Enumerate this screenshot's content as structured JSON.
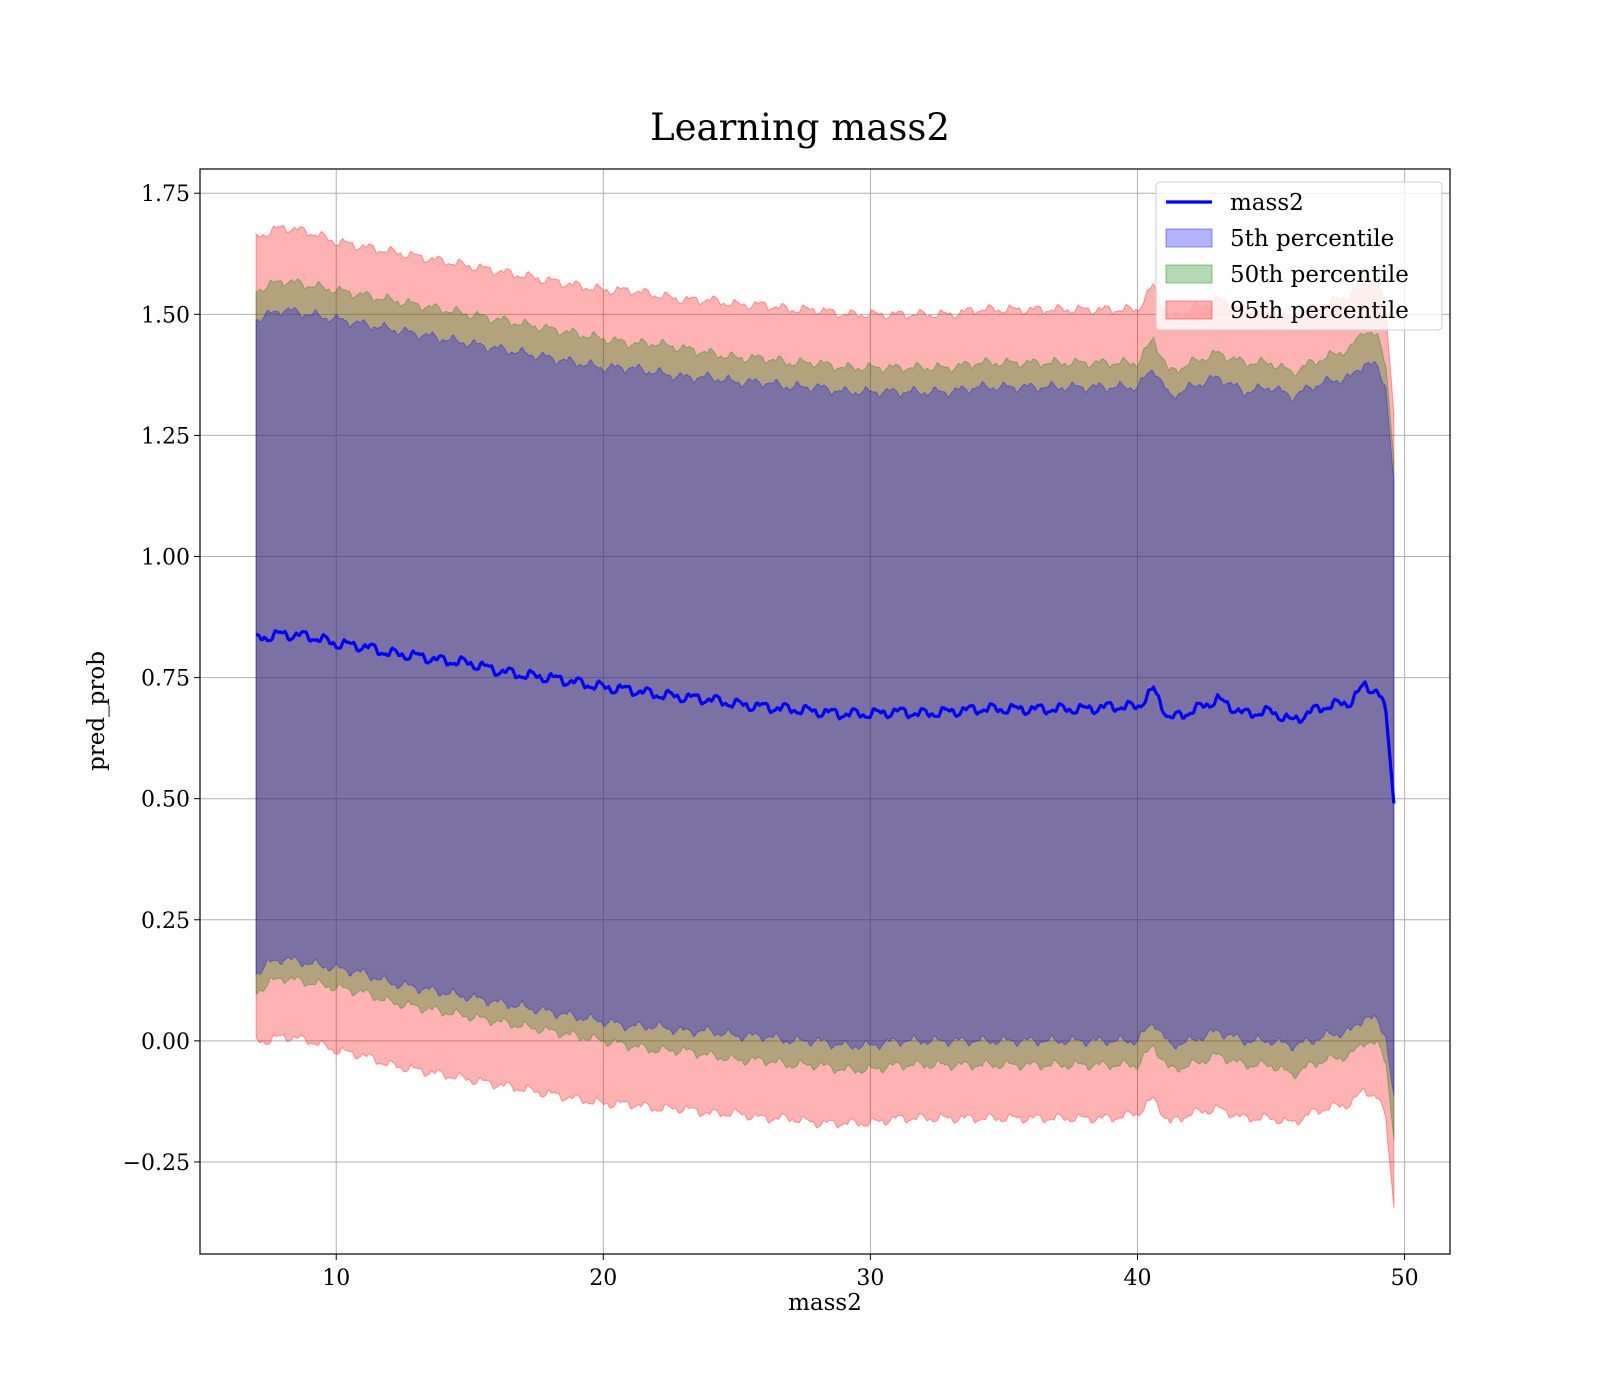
{
  "chart_data": {
    "type": "line",
    "title": "Learning mass2",
    "xlabel": "mass2",
    "ylabel": "pred_prob",
    "xlim": [
      4.9,
      51.7
    ],
    "ylim": [
      -0.44,
      1.8
    ],
    "grid": true,
    "legend_position": "top-right",
    "x_ticks": [
      10,
      20,
      30,
      40,
      50
    ],
    "x_tick_labels": [
      "10",
      "20",
      "30",
      "40",
      "50"
    ],
    "y_ticks": [
      -0.25,
      0.0,
      0.25,
      0.5,
      0.75,
      1.0,
      1.25,
      1.5,
      1.75
    ],
    "y_tick_labels": [
      "−0.25",
      "0.00",
      "0.25",
      "0.50",
      "0.75",
      "1.00",
      "1.25",
      "1.50",
      "1.75"
    ],
    "legend": [
      {
        "label": "mass2",
        "kind": "line",
        "color": "#0000ff"
      },
      {
        "label": "5th percentile",
        "kind": "patch",
        "color": "#0000ff"
      },
      {
        "label": "50th percentile",
        "kind": "patch",
        "color": "#008000"
      },
      {
        "label": "95th percentile",
        "kind": "patch",
        "color": "#ff0000"
      }
    ],
    "series": [
      {
        "name": "mass2",
        "color": "#0000ff",
        "x": [
          7.0,
          7.5,
          8.0,
          9.0,
          10.0,
          11.0,
          12.0,
          13.0,
          14.0,
          15.0,
          16.0,
          17.0,
          18.0,
          19.0,
          20.0,
          21.0,
          22.0,
          23.0,
          24.0,
          25.0,
          26.0,
          27.0,
          28.0,
          29.0,
          30.0,
          31.0,
          32.0,
          33.0,
          34.0,
          35.0,
          36.0,
          37.0,
          38.0,
          39.0,
          40.0,
          40.6,
          41.2,
          42.0,
          43.0,
          44.0,
          45.0,
          45.8,
          46.5,
          47.0,
          48.0,
          48.5,
          49.0,
          49.3,
          49.6
        ],
        "y": [
          0.83,
          0.835,
          0.84,
          0.835,
          0.82,
          0.815,
          0.8,
          0.795,
          0.785,
          0.78,
          0.765,
          0.755,
          0.75,
          0.74,
          0.73,
          0.725,
          0.715,
          0.71,
          0.705,
          0.695,
          0.69,
          0.685,
          0.68,
          0.675,
          0.675,
          0.68,
          0.675,
          0.68,
          0.685,
          0.685,
          0.685,
          0.685,
          0.685,
          0.69,
          0.69,
          0.725,
          0.665,
          0.68,
          0.705,
          0.675,
          0.68,
          0.66,
          0.68,
          0.69,
          0.7,
          0.735,
          0.72,
          0.68,
          0.49
        ]
      }
    ],
    "bands": [
      {
        "name": "5th percentile",
        "color": "#0000ff",
        "x": [
          7.0,
          7.5,
          8.0,
          9.0,
          10.0,
          11.0,
          12.0,
          13.0,
          14.0,
          15.0,
          16.0,
          17.0,
          18.0,
          19.0,
          20.0,
          21.0,
          22.0,
          23.0,
          24.0,
          25.0,
          26.0,
          27.0,
          28.0,
          29.0,
          30.0,
          31.0,
          32.0,
          33.0,
          34.0,
          35.0,
          36.0,
          37.0,
          38.0,
          39.0,
          40.0,
          40.6,
          41.2,
          42.0,
          43.0,
          44.0,
          45.0,
          45.8,
          46.5,
          47.0,
          48.0,
          48.5,
          49.0,
          49.3,
          49.6
        ],
        "lower": [
          0.14,
          0.16,
          0.17,
          0.16,
          0.15,
          0.14,
          0.12,
          0.11,
          0.1,
          0.09,
          0.08,
          0.07,
          0.06,
          0.05,
          0.04,
          0.03,
          0.03,
          0.02,
          0.02,
          0.01,
          0.01,
          0.0,
          0.0,
          -0.01,
          -0.01,
          0.0,
          0.0,
          0.0,
          0.0,
          0.0,
          0.0,
          0.0,
          0.0,
          0.0,
          0.0,
          0.04,
          -0.01,
          0.0,
          0.02,
          0.0,
          0.0,
          -0.01,
          0.0,
          0.01,
          0.02,
          0.05,
          0.04,
          0.01,
          -0.12
        ],
        "upper": [
          1.49,
          1.5,
          1.51,
          1.5,
          1.49,
          1.48,
          1.47,
          1.46,
          1.45,
          1.44,
          1.43,
          1.42,
          1.41,
          1.4,
          1.39,
          1.39,
          1.38,
          1.37,
          1.37,
          1.36,
          1.36,
          1.35,
          1.35,
          1.34,
          1.34,
          1.34,
          1.34,
          1.34,
          1.35,
          1.35,
          1.35,
          1.35,
          1.35,
          1.35,
          1.35,
          1.39,
          1.33,
          1.35,
          1.37,
          1.34,
          1.35,
          1.33,
          1.35,
          1.36,
          1.37,
          1.4,
          1.39,
          1.35,
          1.15
        ]
      },
      {
        "name": "50th percentile",
        "color": "#008000",
        "x": [
          7.0,
          7.5,
          8.0,
          9.0,
          10.0,
          11.0,
          12.0,
          13.0,
          14.0,
          15.0,
          16.0,
          17.0,
          18.0,
          19.0,
          20.0,
          21.0,
          22.0,
          23.0,
          24.0,
          25.0,
          26.0,
          27.0,
          28.0,
          29.0,
          30.0,
          31.0,
          32.0,
          33.0,
          34.0,
          35.0,
          36.0,
          37.0,
          38.0,
          39.0,
          40.0,
          40.6,
          41.2,
          42.0,
          43.0,
          44.0,
          45.0,
          45.8,
          46.5,
          47.0,
          48.0,
          48.5,
          49.0,
          49.3,
          49.6
        ],
        "lower": [
          0.1,
          0.12,
          0.13,
          0.12,
          0.11,
          0.1,
          0.08,
          0.07,
          0.06,
          0.05,
          0.04,
          0.03,
          0.02,
          0.01,
          0.0,
          -0.01,
          -0.02,
          -0.02,
          -0.03,
          -0.04,
          -0.04,
          -0.05,
          -0.05,
          -0.06,
          -0.06,
          -0.05,
          -0.05,
          -0.05,
          -0.05,
          -0.05,
          -0.05,
          -0.05,
          -0.05,
          -0.05,
          -0.05,
          -0.01,
          -0.06,
          -0.05,
          -0.03,
          -0.05,
          -0.05,
          -0.07,
          -0.05,
          -0.04,
          -0.03,
          0.0,
          -0.01,
          -0.04,
          -0.2
        ],
        "upper": [
          1.55,
          1.56,
          1.57,
          1.56,
          1.55,
          1.54,
          1.53,
          1.52,
          1.51,
          1.5,
          1.49,
          1.48,
          1.47,
          1.46,
          1.45,
          1.44,
          1.44,
          1.43,
          1.42,
          1.41,
          1.41,
          1.4,
          1.4,
          1.39,
          1.39,
          1.39,
          1.39,
          1.39,
          1.4,
          1.4,
          1.4,
          1.4,
          1.4,
          1.4,
          1.4,
          1.45,
          1.38,
          1.4,
          1.42,
          1.4,
          1.4,
          1.38,
          1.4,
          1.41,
          1.43,
          1.47,
          1.45,
          1.4,
          1.2
        ]
      },
      {
        "name": "95th percentile",
        "color": "#ff0000",
        "x": [
          7.0,
          7.5,
          8.0,
          9.0,
          10.0,
          11.0,
          12.0,
          13.0,
          14.0,
          15.0,
          16.0,
          17.0,
          18.0,
          19.0,
          20.0,
          21.0,
          22.0,
          23.0,
          24.0,
          25.0,
          26.0,
          27.0,
          28.0,
          29.0,
          30.0,
          31.0,
          32.0,
          33.0,
          34.0,
          35.0,
          36.0,
          37.0,
          38.0,
          39.0,
          40.0,
          40.6,
          41.2,
          42.0,
          43.0,
          44.0,
          45.0,
          45.8,
          46.5,
          47.0,
          48.0,
          48.5,
          49.0,
          49.3,
          49.6
        ],
        "lower": [
          0.0,
          0.0,
          0.01,
          0.0,
          -0.02,
          -0.03,
          -0.05,
          -0.06,
          -0.07,
          -0.08,
          -0.09,
          -0.1,
          -0.11,
          -0.12,
          -0.13,
          -0.13,
          -0.14,
          -0.14,
          -0.15,
          -0.15,
          -0.16,
          -0.16,
          -0.17,
          -0.17,
          -0.17,
          -0.16,
          -0.16,
          -0.16,
          -0.16,
          -0.16,
          -0.16,
          -0.16,
          -0.16,
          -0.16,
          -0.15,
          -0.12,
          -0.17,
          -0.15,
          -0.14,
          -0.16,
          -0.16,
          -0.17,
          -0.15,
          -0.14,
          -0.13,
          -0.1,
          -0.12,
          -0.16,
          -0.34
        ],
        "upper": [
          1.66,
          1.67,
          1.68,
          1.67,
          1.65,
          1.64,
          1.63,
          1.62,
          1.61,
          1.6,
          1.59,
          1.58,
          1.57,
          1.56,
          1.55,
          1.55,
          1.54,
          1.53,
          1.53,
          1.52,
          1.52,
          1.51,
          1.51,
          1.5,
          1.5,
          1.5,
          1.5,
          1.5,
          1.51,
          1.51,
          1.51,
          1.51,
          1.51,
          1.51,
          1.51,
          1.56,
          1.49,
          1.51,
          1.53,
          1.51,
          1.51,
          1.49,
          1.51,
          1.52,
          1.54,
          1.58,
          1.56,
          1.51,
          1.3
        ]
      }
    ]
  }
}
